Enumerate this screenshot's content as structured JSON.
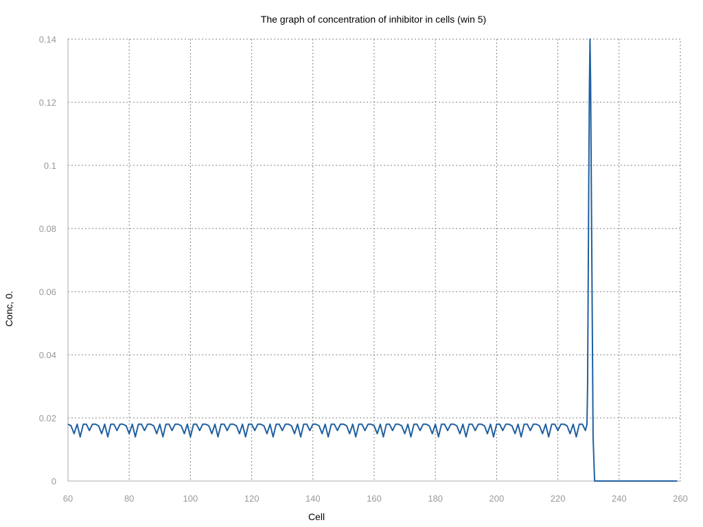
{
  "chart_data": {
    "type": "line",
    "title": "The graph of concentration of inhibitor in cells (win 5)",
    "xlabel": "Cell",
    "ylabel": "Conc,    0.",
    "xlim": [
      60,
      260
    ],
    "ylim": [
      0,
      0.14
    ],
    "x_ticks": [
      "60",
      "80",
      "100",
      "120",
      "140",
      "160",
      "180",
      "200",
      "220",
      "240",
      "260"
    ],
    "y_ticks": [
      "0",
      "0.02",
      "0.04",
      "0.06",
      "0.08",
      "0.1",
      "0.12",
      "0.14"
    ],
    "grid": true,
    "line_color": "#1f5fa0",
    "series": [
      {
        "baseline_start": 60,
        "baseline_end": 229,
        "baseline_pattern": [
          0.018,
          0.0175,
          0.015,
          0.018,
          0.014,
          0.018,
          0.018,
          0.016,
          0.018
        ],
        "points": [
          [
            229.5,
            0.018
          ],
          [
            229.7,
            0.03
          ],
          [
            229.9,
            0.063
          ],
          [
            230.1,
            0.094
          ],
          [
            230.3,
            0.124
          ],
          [
            230.5,
            0.14
          ],
          [
            230.7,
            0.126
          ],
          [
            230.9,
            0.098
          ],
          [
            231.1,
            0.07
          ],
          [
            231.3,
            0.042
          ],
          [
            231.5,
            0.014
          ],
          [
            232,
            0
          ],
          [
            259,
            0
          ]
        ]
      }
    ]
  }
}
